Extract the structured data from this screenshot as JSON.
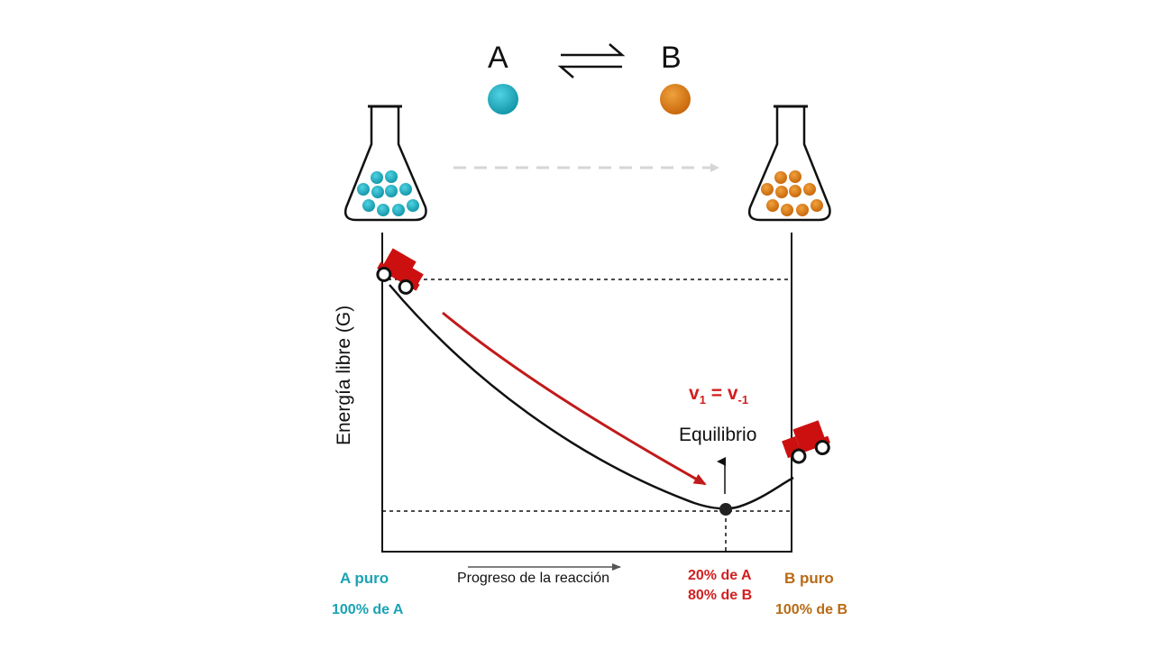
{
  "reaction": {
    "reactant": "A",
    "product": "B"
  },
  "axes": {
    "y_label": "Energía libre (G)",
    "x_label": "Progreso de la reacción"
  },
  "start": {
    "label": "A puro",
    "composition": "100% de A"
  },
  "end": {
    "label": "B puro",
    "composition": "100% de B"
  },
  "equilibrium": {
    "label": "Equilibrio",
    "rate_v": "v",
    "rate_sub_fwd": "1",
    "rate_eq": " = ",
    "rate_sub_rev": "-1",
    "composition_a": "20% de A",
    "composition_b": "80% de B"
  },
  "colors": {
    "A": "#1aa3b5",
    "B": "#d97b14",
    "arrow": "#c21a1a",
    "car": "#cc1010",
    "curve": "#111111"
  }
}
